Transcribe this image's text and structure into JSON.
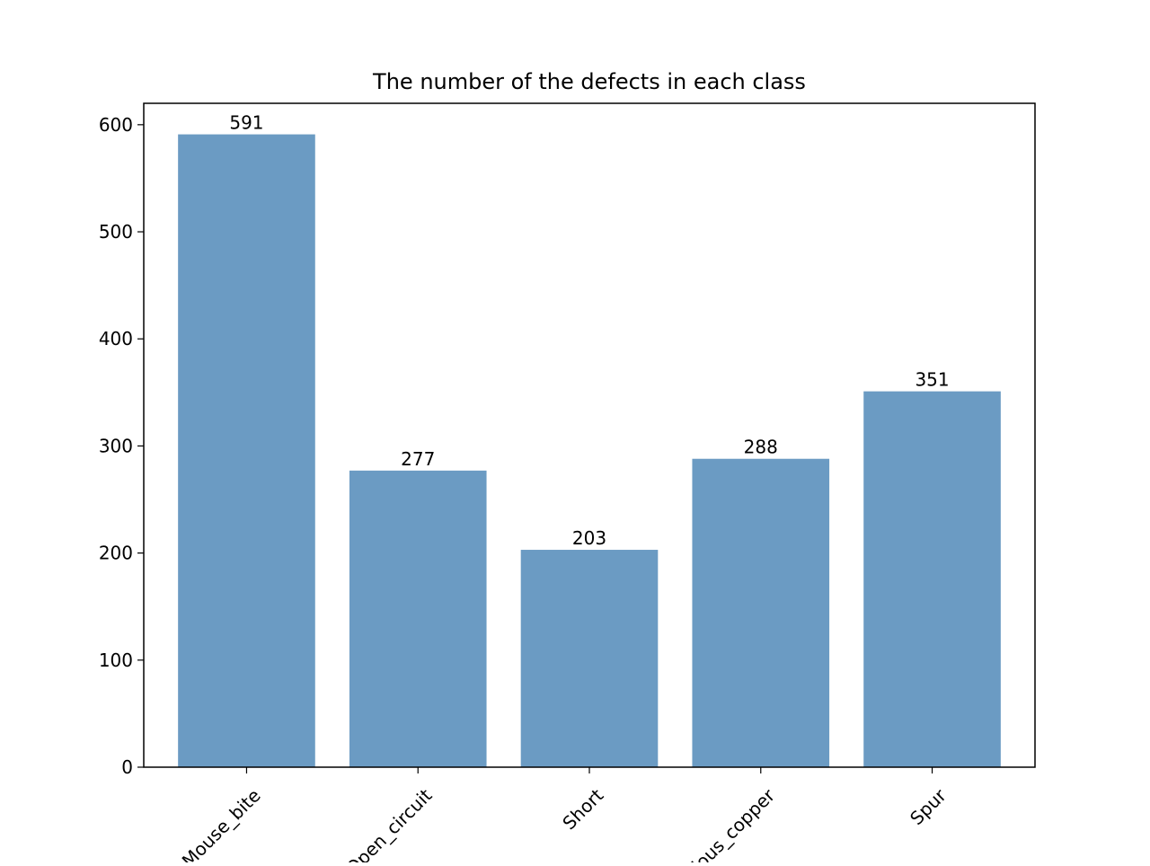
{
  "chart_data": {
    "type": "bar",
    "title": "The number of the defects in each class",
    "xlabel": "",
    "ylabel": "",
    "categories": [
      "Mouse_bite",
      "Open_circuit",
      "Short",
      "Spurious_copper",
      "Spur"
    ],
    "values": [
      591,
      277,
      203,
      288,
      351
    ],
    "data_labels": [
      "591",
      "277",
      "203",
      "288",
      "351"
    ],
    "ylim": [
      0,
      620
    ],
    "yticks": [
      0,
      100,
      200,
      300,
      400,
      500,
      600
    ],
    "ytick_labels": [
      "0",
      "100",
      "200",
      "300",
      "400",
      "500",
      "600"
    ],
    "xtick_rotation_deg": 45,
    "grid": false,
    "legend": "none",
    "bar_color": "#6b9bc3"
  }
}
